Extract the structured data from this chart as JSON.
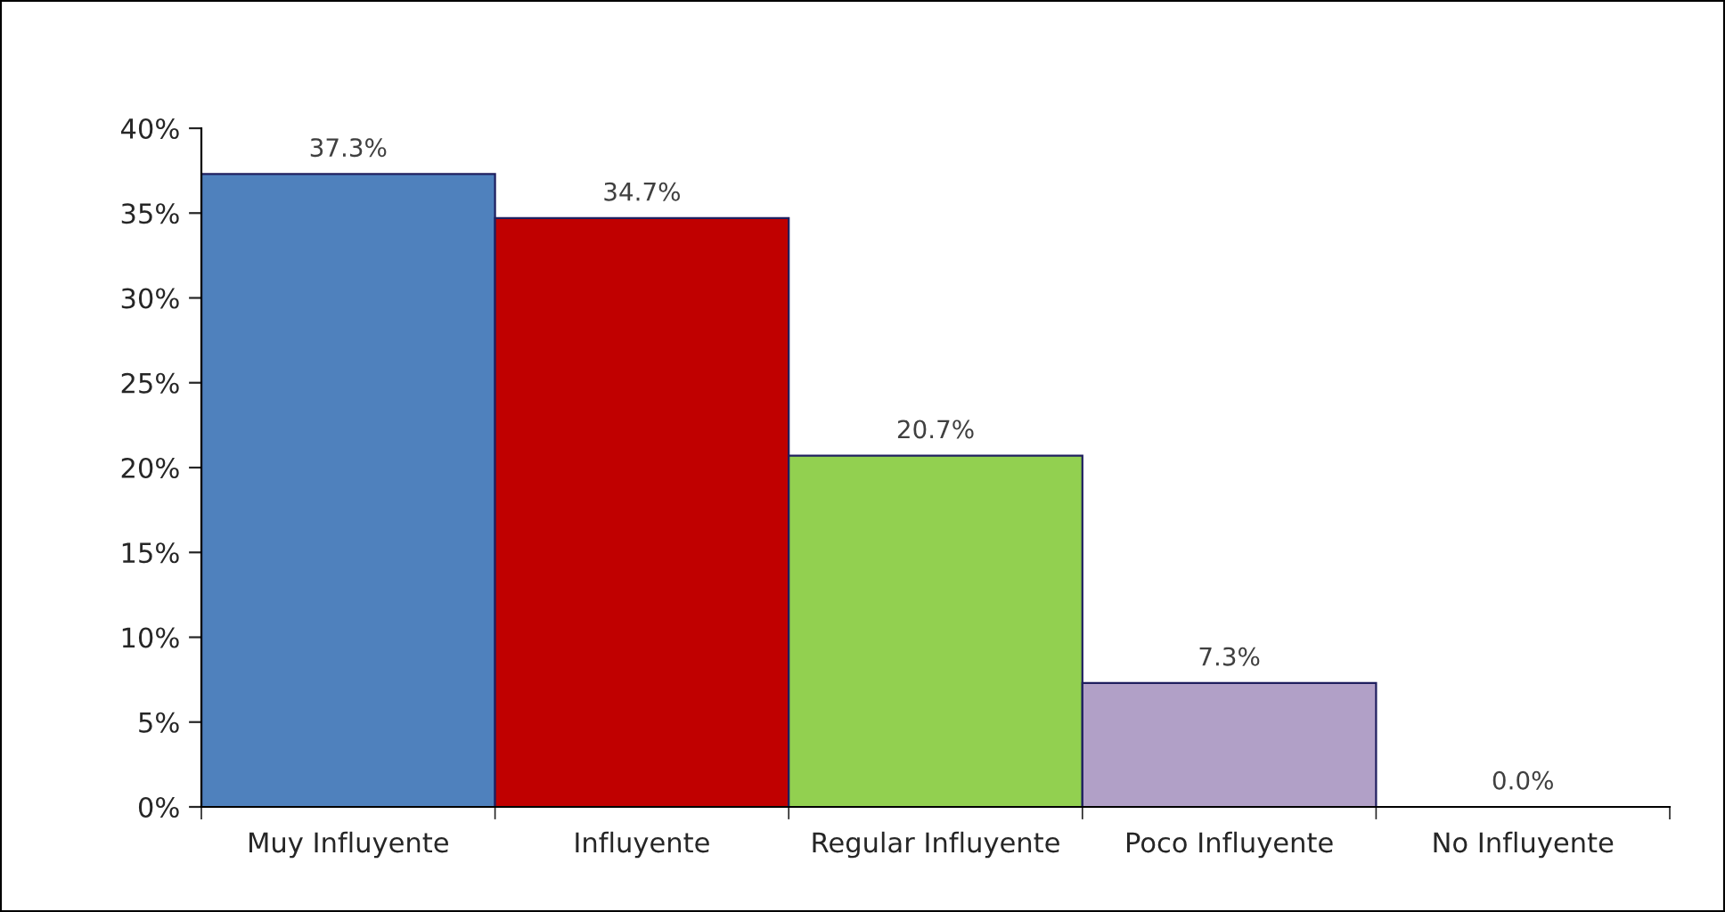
{
  "chart_data": {
    "type": "bar",
    "categories": [
      "Muy Influyente",
      "Influyente",
      "Regular Influyente",
      "Poco Influyente",
      "No Influyente"
    ],
    "values": [
      37.3,
      34.7,
      20.7,
      7.3,
      0.0
    ],
    "colors": [
      "#4f81bd",
      "#c00000",
      "#92d050",
      "#b1a0c7",
      "#8064a2"
    ],
    "value_labels": [
      "37.3%",
      "34.7%",
      "20.7%",
      "7.3%",
      "0.0%"
    ],
    "ylim": [
      0,
      40
    ],
    "yticks": [
      {
        "value": 0,
        "label": "0%"
      },
      {
        "value": 5,
        "label": "5%"
      },
      {
        "value": 10,
        "label": "10%"
      },
      {
        "value": 15,
        "label": "15%"
      },
      {
        "value": 20,
        "label": "20%"
      },
      {
        "value": 25,
        "label": "25%"
      },
      {
        "value": 30,
        "label": "30%"
      },
      {
        "value": 35,
        "label": "35%"
      },
      {
        "value": 40,
        "label": "40%"
      }
    ],
    "grid": false,
    "legend": false
  }
}
